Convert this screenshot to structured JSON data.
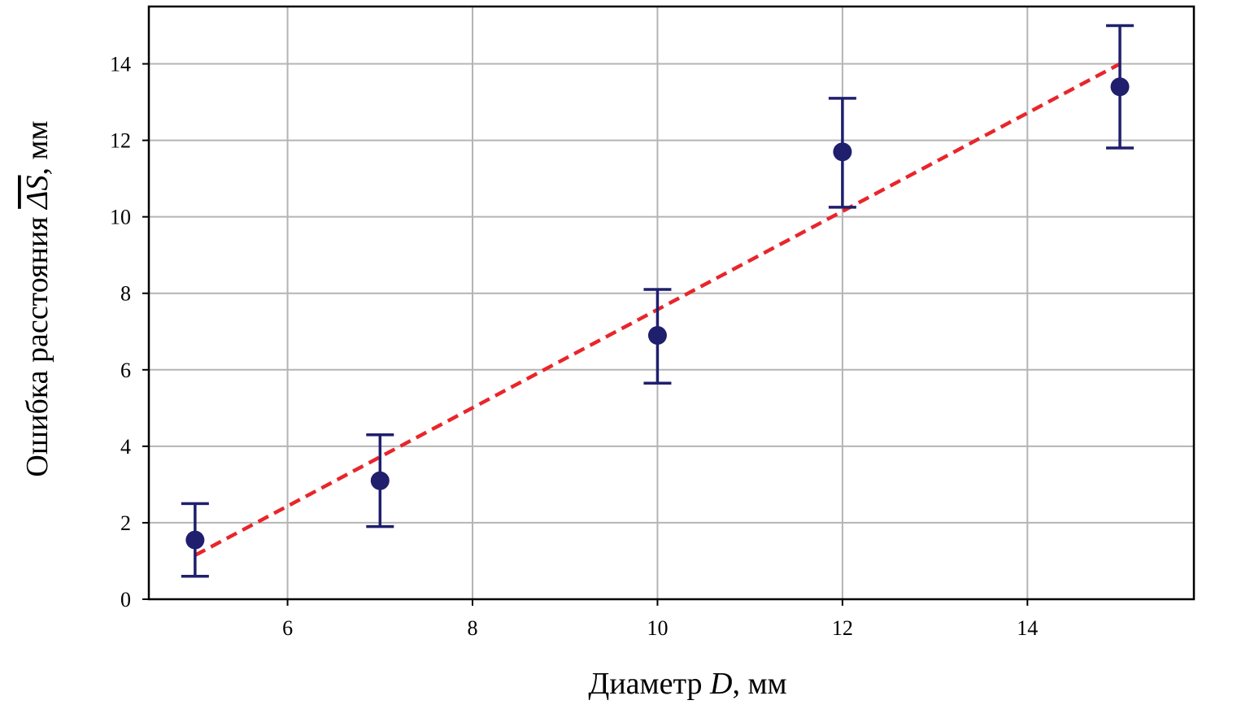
{
  "chart_data": {
    "type": "scatter",
    "xlabel_parts": {
      "pre": "Диаметр ",
      "var": "D",
      "post": ", мм"
    },
    "ylabel_parts": {
      "pre": "Ошибка расстояния ",
      "var": "ΔS",
      "post": ", мм"
    },
    "xlim": [
      4.5,
      15.8
    ],
    "ylim": [
      0,
      15.5
    ],
    "xticks": [
      6,
      8,
      10,
      12,
      14
    ],
    "yticks": [
      0,
      2,
      4,
      6,
      8,
      10,
      12,
      14
    ],
    "grid": true,
    "series": [
      {
        "points": [
          {
            "x": 5,
            "y": 1.55,
            "err_low": 0.6,
            "err_high": 2.5
          },
          {
            "x": 7,
            "y": 3.1,
            "err_low": 1.9,
            "err_high": 4.3
          },
          {
            "x": 10,
            "y": 6.9,
            "err_low": 5.65,
            "err_high": 8.1
          },
          {
            "x": 12,
            "y": 11.7,
            "err_low": 10.25,
            "err_high": 13.1
          },
          {
            "x": 15,
            "y": 13.4,
            "err_low": 11.8,
            "err_high": 15.0
          }
        ],
        "color": "#1f1f6e"
      }
    ],
    "fit_line": {
      "x": [
        5,
        15
      ],
      "y": [
        1.15,
        14.0
      ],
      "color": "#e8262b",
      "style": "dashed"
    }
  }
}
